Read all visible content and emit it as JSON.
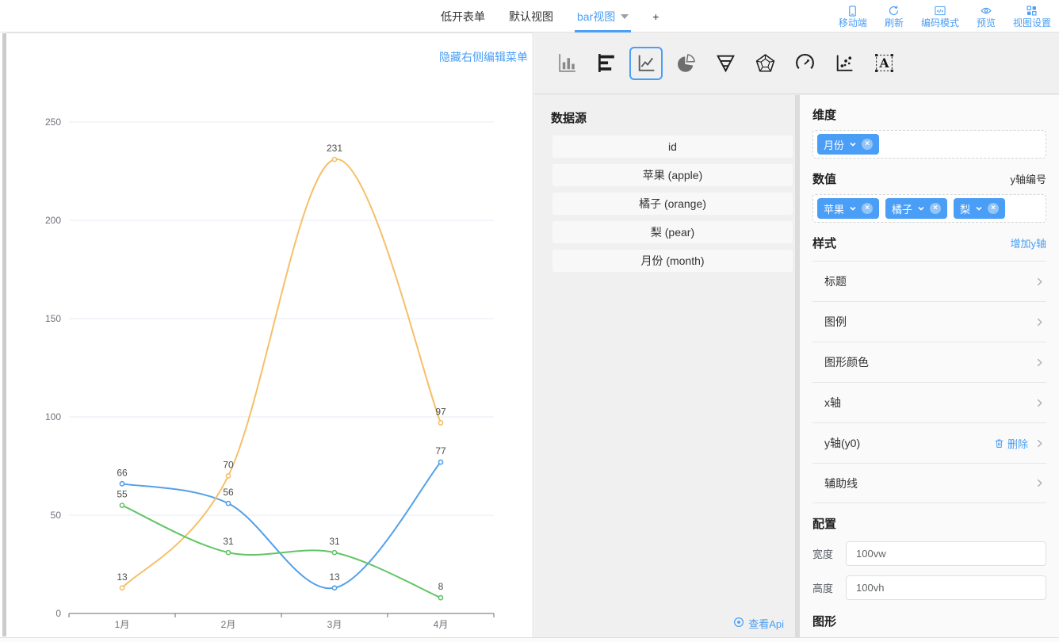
{
  "topbar": {
    "tabs": [
      {
        "key": "form",
        "label": "低开表单",
        "active": false,
        "has_caret": false
      },
      {
        "key": "default-view",
        "label": "默认视图",
        "active": false,
        "has_caret": false
      },
      {
        "key": "bar-view",
        "label": "bar视图",
        "active": true,
        "has_caret": true
      },
      {
        "key": "add-view",
        "label": "+",
        "active": false,
        "has_caret": false
      }
    ],
    "actions": [
      {
        "key": "mobile",
        "label": "移动端"
      },
      {
        "key": "refresh",
        "label": "刷新"
      },
      {
        "key": "code-mode",
        "label": "编码模式"
      },
      {
        "key": "preview",
        "label": "预览"
      },
      {
        "key": "view-settings",
        "label": "视图设置"
      }
    ]
  },
  "chart_panel": {
    "hide_menu_label": "隐藏右侧编辑菜单"
  },
  "chart_data": {
    "type": "line",
    "title": "",
    "xlabel": "",
    "ylabel": "",
    "categories": [
      "1月",
      "2月",
      "3月",
      "4月"
    ],
    "series": [
      {
        "name": "苹果",
        "values": [
          66,
          56,
          13,
          77
        ],
        "color": "#54a0e8"
      },
      {
        "name": "橘子",
        "values": [
          13,
          70,
          231,
          97
        ],
        "color": "#f5c069"
      },
      {
        "name": "梨",
        "values": [
          55,
          31,
          31,
          8
        ],
        "color": "#62c566"
      }
    ],
    "ylim": [
      0,
      250
    ],
    "y_interval": 50,
    "smooth": true,
    "point_labels": true,
    "grid": true,
    "legend": "none"
  },
  "type_toolbar": {
    "selected": "line",
    "items": [
      {
        "key": "bar"
      },
      {
        "key": "hbar"
      },
      {
        "key": "line"
      },
      {
        "key": "pie"
      },
      {
        "key": "funnel"
      },
      {
        "key": "radar"
      },
      {
        "key": "gauge"
      },
      {
        "key": "scatter"
      },
      {
        "key": "text"
      }
    ]
  },
  "datasource": {
    "title": "数据源",
    "fields": [
      "id",
      "苹果 (apple)",
      "橘子 (orange)",
      "梨 (pear)",
      "月份 (month)"
    ],
    "api_link": "查看Api"
  },
  "config_panel": {
    "dimension": {
      "title": "维度",
      "tags": [
        "月份"
      ]
    },
    "value": {
      "title": "数值",
      "axis_hint": "y轴编号",
      "tags": [
        "苹果",
        "橘子",
        "梨"
      ]
    },
    "style": {
      "title": "样式",
      "add_y_label": "增加y轴",
      "rows": [
        {
          "key": "title",
          "label": "标题"
        },
        {
          "key": "legend",
          "label": "图例"
        },
        {
          "key": "colors",
          "label": "图形颜色"
        },
        {
          "key": "x-axis",
          "label": "x轴"
        },
        {
          "key": "y-axis-y0",
          "label": "y轴(y0)",
          "delete_label": "删除"
        },
        {
          "key": "guide-line",
          "label": "辅助线"
        }
      ]
    },
    "config": {
      "title": "配置",
      "fields": [
        {
          "key": "width",
          "label": "宽度",
          "value": "100vw"
        },
        {
          "key": "height",
          "label": "高度",
          "value": "100vh"
        }
      ]
    },
    "graphic_title": "图形"
  },
  "colors": {
    "accent": "#4a9ef5",
    "axis_text": "#6e7079",
    "grid_line": "#e6ecf4",
    "label_text": "#4d4d4d"
  }
}
